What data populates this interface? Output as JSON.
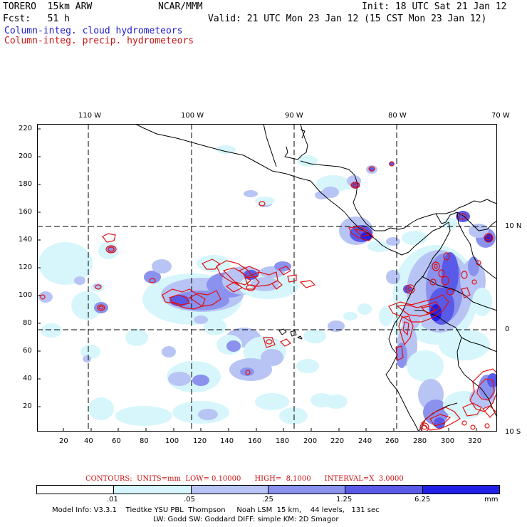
{
  "header": {
    "model": "TORERO  15km ARW",
    "center": "NCAR/MMM",
    "init": "Init: 18 UTC Sat 21 Jan 12",
    "forecast": "Fcst:   51 h",
    "valid": "Valid: 21 UTC Mon 23 Jan 12 (15 CST Mon 23 Jan 12)",
    "field_cloud": "Column-integ. cloud hydrometeors",
    "field_precip": "Column-integ. precip. hydrometeors"
  },
  "colors": {
    "cloud_text": "#1a1acc",
    "precip_text": "#cc1111",
    "precip_contour": "#e01010",
    "shade_1": "#d6f6fb",
    "shade_2": "#b8c4f4",
    "shade_3": "#8a92ee",
    "shade_4": "#5a5ae8",
    "shade_5": "#2020e6",
    "coast": "#000000",
    "grid": "#000000"
  },
  "map": {
    "projection": "model grid",
    "top_lon_labels": [
      "110 W",
      "100 W",
      "90 W",
      "80 W",
      "70 W"
    ],
    "right_lat_labels": [
      "10 N",
      "0",
      "10 S"
    ],
    "left_ticks": [
      "220",
      "200",
      "180",
      "160",
      "140",
      "120",
      "100",
      "80",
      "60",
      "40",
      "20"
    ],
    "bottom_ticks": [
      "20",
      "40",
      "60",
      "80",
      "100",
      "120",
      "140",
      "160",
      "180",
      "200",
      "220",
      "240",
      "260",
      "280",
      "300",
      "320"
    ],
    "grid_range_x": [
      0,
      334
    ],
    "grid_range_y": [
      0,
      224
    ],
    "dashed_meridian_gridx": [
      40,
      112,
      186,
      261
    ],
    "dashed_parallel_gridy": [
      150,
      75
    ]
  },
  "contour_info": {
    "label": "CONTOURS:  UNITS=mm  LOW= 0.10000      HIGH=  8.1000      INTERVAL=X  3.0000"
  },
  "colorbar": {
    "ticks": [
      ".01",
      ".05",
      ".25",
      "1.25",
      "6.25"
    ],
    "unit": "mm",
    "bins": 6
  },
  "footer": {
    "line1": "Model Info: V3.3.1    Tiedtke YSU PBL  Thompson     Noah LSM  15 km,    44 levels,   131 sec",
    "line2": "LW: Godd SW: Goddard DIFF: simple KM: 2D Smagor"
  }
}
